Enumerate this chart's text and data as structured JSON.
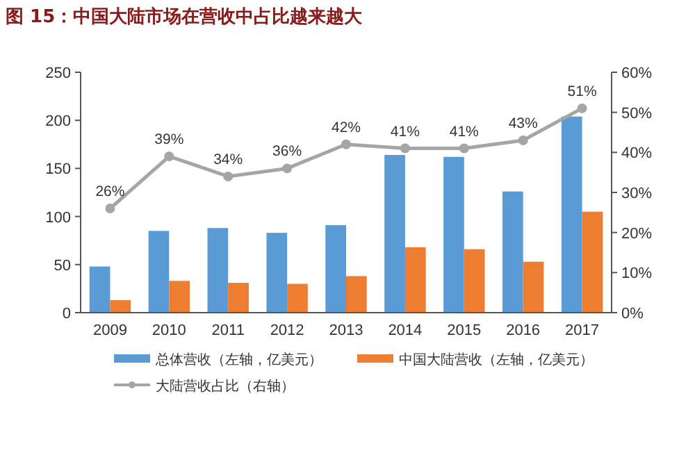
{
  "chart_data": {
    "type": "bar",
    "title": "图 15：中国大陆市场在营收中占比越来越大",
    "categories": [
      "2009",
      "2010",
      "2011",
      "2012",
      "2013",
      "2014",
      "2015",
      "2016",
      "2017"
    ],
    "series": [
      {
        "name": "总体营收（左轴，亿美元）",
        "color": "#5b9bd5",
        "values": [
          48,
          85,
          88,
          83,
          91,
          164,
          162,
          126,
          204
        ]
      },
      {
        "name": "中国大陆营收（左轴，亿美元）",
        "color": "#ed7d31",
        "values": [
          13,
          33,
          31,
          30,
          38,
          68,
          66,
          53,
          105
        ]
      },
      {
        "name": "大陆营收占比（右轴）",
        "type": "line",
        "axis": "y2",
        "color": "#a5a5a5",
        "marker": "circle",
        "values": [
          26,
          39,
          34,
          36,
          42,
          41,
          41,
          43,
          51
        ],
        "value_labels": [
          "26%",
          "39%",
          "34%",
          "36%",
          "42%",
          "41%",
          "41%",
          "43%",
          "51%"
        ]
      }
    ],
    "ylim": [
      0,
      250
    ],
    "yticks": [
      0,
      50,
      100,
      150,
      200,
      250
    ],
    "y2lim": [
      0,
      60
    ],
    "y2ticks": [
      {
        "value": 0,
        "label": "0%"
      },
      {
        "value": 10,
        "label": "10%"
      },
      {
        "value": 20,
        "label": "20%"
      },
      {
        "value": 30,
        "label": "30%"
      },
      {
        "value": 40,
        "label": "40%"
      },
      {
        "value": 50,
        "label": "50%"
      },
      {
        "value": 60,
        "label": "60%"
      }
    ],
    "legend": "bottom",
    "grid": false
  }
}
